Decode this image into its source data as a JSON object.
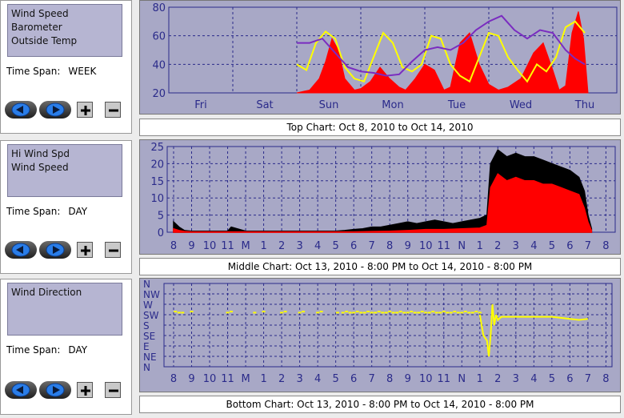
{
  "panels": [
    {
      "id": "top",
      "measures": [
        "Wind Speed",
        "Barometer",
        "Outside Temp"
      ],
      "time_span_label": "Time Span:",
      "time_span_value": "WEEK",
      "chart_label": "Top Chart:  Oct 8, 2010  to  Oct 14, 2010"
    },
    {
      "id": "middle",
      "measures": [
        "Hi Wind Spd",
        "Wind Speed"
      ],
      "time_span_label": "Time Span:",
      "time_span_value": "DAY",
      "chart_label": "Middle Chart:  Oct 13, 2010 - 8:00 PM  to  Oct 14, 2010 - 8:00 PM"
    },
    {
      "id": "bottom",
      "measures": [
        "Wind Direction"
      ],
      "time_span_label": "Time Span:",
      "time_span_value": "DAY",
      "chart_label": "Bottom Chart:  Oct 13, 2010 - 8:00 PM  to  Oct 14, 2010 - 8:00 PM"
    }
  ],
  "controls": {
    "back_icon": "left-arrow-icon",
    "forward_icon": "right-arrow-icon",
    "zoom_in_icon": "plus-icon",
    "zoom_out_icon": "minus-icon"
  },
  "colors": {
    "plot_bg": "#a8a8c6",
    "grid": "#2a2a8a",
    "axis_text": "#2a2a8a",
    "red": "#ff0000",
    "yellow": "#ffff00",
    "purple": "#7a2cc0",
    "black": "#000000"
  },
  "chart_data": [
    {
      "type": "line",
      "title": "Top Chart:  Oct 8, 2010  to  Oct 14, 2010",
      "categories": [
        "Fri",
        "Sat",
        "Sun",
        "Mon",
        "Tue",
        "Wed",
        "Thu"
      ],
      "ylim": [
        20,
        80
      ],
      "yticks": [
        20,
        40,
        60,
        80
      ],
      "grid": true,
      "series": [
        {
          "name": "Wind Speed",
          "color": "#ff0000",
          "style": "filled-spikes",
          "x": [
            2.0,
            2.2,
            2.35,
            2.45,
            2.55,
            2.65,
            2.75,
            2.9,
            3.0,
            3.15,
            3.3,
            3.45,
            3.6,
            3.7,
            3.85,
            4.0,
            4.15,
            4.3,
            4.4,
            4.55,
            4.7,
            4.85,
            5.0,
            5.15,
            5.3,
            5.5,
            5.7,
            5.85,
            6.0,
            6.1,
            6.2,
            6.3,
            6.4,
            6.48,
            6.55
          ],
          "y": [
            20,
            22,
            30,
            42,
            58,
            50,
            30,
            22,
            23,
            28,
            38,
            30,
            24,
            22,
            30,
            40,
            36,
            22,
            24,
            55,
            62,
            40,
            26,
            22,
            24,
            30,
            48,
            55,
            36,
            22,
            25,
            62,
            77,
            58,
            20
          ]
        },
        {
          "name": "Outside Temp",
          "color": "#ffff00",
          "x": [
            2.0,
            2.15,
            2.3,
            2.45,
            2.6,
            2.75,
            2.9,
            3.05,
            3.2,
            3.35,
            3.5,
            3.65,
            3.8,
            3.95,
            4.1,
            4.25,
            4.4,
            4.55,
            4.7,
            4.85,
            5.0,
            5.15,
            5.3,
            5.45,
            5.6,
            5.75,
            5.9,
            6.05,
            6.2,
            6.35,
            6.5
          ],
          "y": [
            40,
            36,
            55,
            63,
            58,
            38,
            30,
            28,
            45,
            62,
            55,
            38,
            35,
            40,
            60,
            58,
            40,
            32,
            28,
            45,
            62,
            60,
            45,
            36,
            28,
            40,
            35,
            45,
            66,
            70,
            62
          ]
        },
        {
          "name": "Barometer",
          "color": "#7a2cc0",
          "x": [
            2.0,
            2.2,
            2.4,
            2.6,
            2.8,
            3.0,
            3.2,
            3.4,
            3.6,
            3.8,
            4.0,
            4.2,
            4.4,
            4.6,
            4.8,
            5.0,
            5.2,
            5.4,
            5.6,
            5.8,
            6.0,
            6.2,
            6.35,
            6.5
          ],
          "y": [
            55,
            55,
            58,
            48,
            38,
            35,
            34,
            32,
            33,
            42,
            50,
            52,
            50,
            55,
            64,
            70,
            74,
            64,
            58,
            64,
            62,
            50,
            44,
            40
          ]
        }
      ]
    },
    {
      "type": "line",
      "title": "Middle Chart:  Oct 13, 2010 - 8:00 PM  to  Oct 14, 2010 - 8:00 PM",
      "categories": [
        "8",
        "9",
        "10",
        "11",
        "M",
        "1",
        "2",
        "3",
        "4",
        "5",
        "6",
        "7",
        "8",
        "9",
        "10",
        "11",
        "N",
        "1",
        "2",
        "3",
        "4",
        "5",
        "6",
        "7",
        "8"
      ],
      "ylim": [
        0,
        25
      ],
      "yticks": [
        0,
        5,
        10,
        15,
        20,
        25
      ],
      "grid": true,
      "series": [
        {
          "name": "Hi Wind Spd",
          "color": "#000000",
          "x": [
            0,
            0.3,
            0.6,
            1,
            2,
            3,
            3.2,
            4,
            5,
            6,
            7,
            8,
            9,
            9.5,
            10,
            10.5,
            11,
            11.5,
            12,
            12.5,
            13,
            13.5,
            14,
            14.5,
            15,
            15.5,
            16,
            16.5,
            17,
            17.4,
            17.6,
            18,
            18.5,
            19,
            19.5,
            20,
            20.5,
            21,
            21.5,
            22,
            22.5,
            22.8,
            23,
            23.2
          ],
          "y": [
            3,
            1.5,
            0.5,
            0.3,
            0.3,
            0.3,
            1.5,
            0.3,
            0.3,
            0.3,
            0.3,
            0.3,
            0.3,
            0.5,
            0.8,
            1,
            1.5,
            1.5,
            2,
            2.5,
            3,
            2.5,
            3,
            3.5,
            3,
            2.5,
            3,
            3.5,
            4,
            5,
            20,
            24,
            22,
            23,
            22,
            22,
            21,
            20,
            19,
            18,
            16,
            12,
            5,
            1
          ]
        },
        {
          "name": "Wind Speed",
          "color": "#ff0000",
          "x": [
            0,
            0.3,
            0.6,
            1,
            2,
            3,
            4,
            5,
            6,
            7,
            8,
            9,
            10,
            11,
            12,
            13,
            14,
            15,
            16,
            17,
            17.4,
            17.6,
            18,
            18.5,
            19,
            19.5,
            20,
            20.5,
            21,
            21.5,
            22,
            22.5,
            22.8,
            23,
            23.2
          ],
          "y": [
            1,
            0.5,
            0.2,
            0.1,
            0.1,
            0.1,
            0.1,
            0.1,
            0.1,
            0.1,
            0.1,
            0.1,
            0.1,
            0.2,
            0.3,
            0.5,
            0.8,
            0.8,
            1,
            1.2,
            2,
            13,
            17,
            15,
            16,
            15,
            15,
            14,
            14,
            13,
            12,
            11,
            7,
            3,
            0.5
          ]
        }
      ]
    },
    {
      "type": "scatter",
      "title": "Bottom Chart:  Oct 13, 2010 - 8:00 PM  to  Oct 14, 2010 - 8:00 PM",
      "categories": [
        "8",
        "9",
        "10",
        "11",
        "M",
        "1",
        "2",
        "3",
        "4",
        "5",
        "6",
        "7",
        "8",
        "9",
        "10",
        "11",
        "N",
        "1",
        "2",
        "3",
        "4",
        "5",
        "6",
        "7",
        "8"
      ],
      "ylabels": [
        "N",
        "NE",
        "E",
        "SE",
        "S",
        "SW",
        "W",
        "NW",
        "N"
      ],
      "grid": true,
      "series": [
        {
          "name": "Wind Direction",
          "color": "#ffff00",
          "x": [
            0.1,
            0.3,
            0.5,
            1.0,
            3.0,
            3.2,
            4.5,
            5.0,
            6.0,
            6.2,
            7.0,
            7.2,
            8.0,
            8.2,
            9.1,
            9.4,
            9.6,
            9.8,
            10.0,
            10.2,
            10.4,
            10.6,
            10.8,
            11.0,
            11.2,
            11.4,
            11.6,
            11.8,
            12.0,
            12.2,
            12.4,
            12.6,
            12.8,
            13.0,
            13.2,
            13.4,
            13.6,
            13.8,
            14.0,
            14.2,
            14.4,
            14.6,
            14.8,
            15.0,
            15.2,
            15.4,
            15.6,
            15.8,
            16.0,
            16.2,
            16.4,
            16.6,
            16.8,
            17.0
          ],
          "y": [
            5.3,
            5.2,
            5.2,
            5.3,
            5.2,
            5.3,
            5.2,
            5.3,
            5.2,
            5.3,
            5.2,
            5.3,
            5.2,
            5.3,
            5.2,
            5.2,
            5.3,
            5.2,
            5.2,
            5.3,
            5.2,
            5.2,
            5.3,
            5.2,
            5.2,
            5.3,
            5.2,
            5.2,
            5.3,
            5.2,
            5.2,
            5.3,
            5.2,
            5.2,
            5.3,
            5.2,
            5.2,
            5.3,
            5.2,
            5.2,
            5.3,
            5.2,
            5.2,
            5.3,
            5.2,
            5.2,
            5.3,
            5.2,
            5.2,
            5.3,
            5.2,
            5.2,
            5.3,
            5.2
          ]
        },
        {
          "name": "Wind Direction",
          "color": "#ffff00",
          "style": "line",
          "x": [
            17.0,
            17.2,
            17.4,
            17.5,
            17.6,
            17.7,
            17.8,
            17.9,
            18.0,
            18.2,
            18.5,
            19,
            19.5,
            20,
            20.5,
            21,
            21.5,
            22,
            22.5,
            23.0
          ],
          "y": [
            5.0,
            3.0,
            2.5,
            1.0,
            3.0,
            6.0,
            4.0,
            5.0,
            4.5,
            4.8,
            4.8,
            4.8,
            4.8,
            4.8,
            4.8,
            4.8,
            4.7,
            4.6,
            4.5,
            4.6
          ]
        }
      ]
    }
  ]
}
